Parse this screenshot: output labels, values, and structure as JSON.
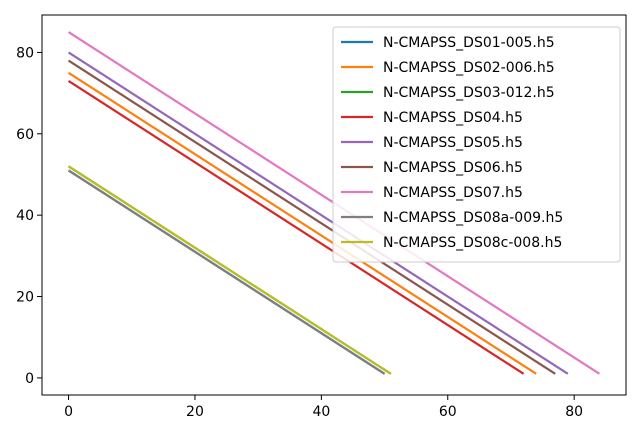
{
  "chart_data": {
    "type": "line",
    "title": "",
    "xlabel": "",
    "ylabel": "",
    "xlim": [
      -4.2,
      88.2
    ],
    "ylim": [
      -4.2,
      89.2
    ],
    "xticks": [
      0,
      20,
      40,
      60,
      80
    ],
    "yticks": [
      0,
      20,
      40,
      60,
      80
    ],
    "grid": false,
    "legend_position": "top-right",
    "series": [
      {
        "name": "N-CMAPSS_DS01-005.h5",
        "color": "#1f77b4",
        "x": [
          0,
          50
        ],
        "y": [
          51,
          1
        ]
      },
      {
        "name": "N-CMAPSS_DS02-006.h5",
        "color": "#ff7f0e",
        "x": [
          0,
          74
        ],
        "y": [
          75,
          1
        ]
      },
      {
        "name": "N-CMAPSS_DS03-012.h5",
        "color": "#2ca02c",
        "x": [
          0,
          51
        ],
        "y": [
          52,
          1
        ]
      },
      {
        "name": "N-CMAPSS_DS04.h5",
        "color": "#d62728",
        "x": [
          0,
          72
        ],
        "y": [
          73,
          1
        ]
      },
      {
        "name": "N-CMAPSS_DS05.h5",
        "color": "#9467bd",
        "x": [
          0,
          79
        ],
        "y": [
          80,
          1
        ]
      },
      {
        "name": "N-CMAPSS_DS06.h5",
        "color": "#8c564b",
        "x": [
          0,
          77
        ],
        "y": [
          78,
          1
        ]
      },
      {
        "name": "N-CMAPSS_DS07.h5",
        "color": "#e377c2",
        "x": [
          0,
          84
        ],
        "y": [
          85,
          1
        ]
      },
      {
        "name": "N-CMAPSS_DS08a-009.h5",
        "color": "#7f7f7f",
        "x": [
          0,
          50
        ],
        "y": [
          51,
          1
        ]
      },
      {
        "name": "N-CMAPSS_DS08c-008.h5",
        "color": "#bcbd22",
        "x": [
          0,
          51
        ],
        "y": [
          52,
          1
        ]
      }
    ]
  }
}
